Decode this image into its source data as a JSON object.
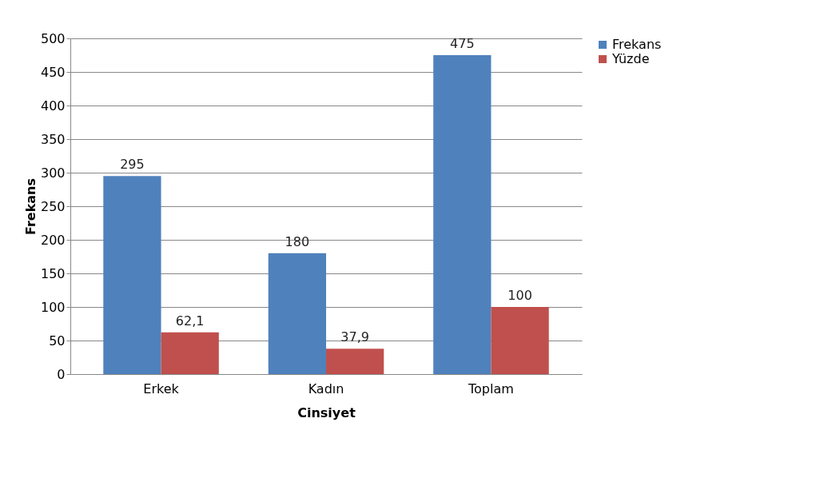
{
  "chart_data": {
    "type": "bar",
    "xlabel": "Cinsiyet",
    "ylabel": "Frekans",
    "categories": [
      "Erkek",
      "Kadın",
      "Toplam"
    ],
    "series": [
      {
        "name": "Frekans",
        "color": "#4f81bd",
        "values": [
          295,
          180,
          475
        ],
        "value_labels": [
          "295",
          "180",
          "475"
        ]
      },
      {
        "name": "Yüzde",
        "color": "#c0504d",
        "values": [
          62.1,
          37.9,
          100
        ],
        "value_labels": [
          "62,1",
          "37,9",
          "100"
        ]
      }
    ],
    "ylim": [
      0,
      500
    ],
    "yticks": [
      0,
      50,
      100,
      150,
      200,
      250,
      300,
      350,
      400,
      450,
      500
    ],
    "grid": "y",
    "legend": "right"
  }
}
